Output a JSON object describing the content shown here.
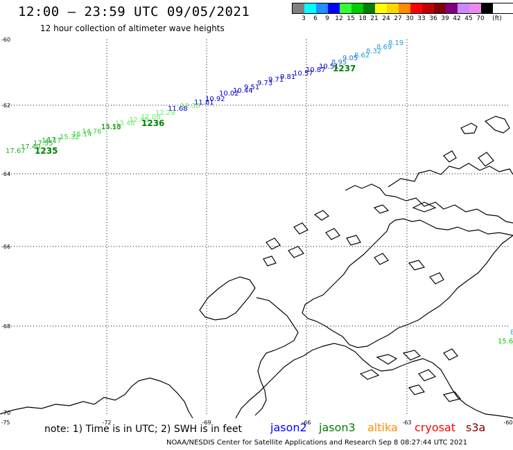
{
  "header": {
    "title": "12:00 – 23:59 UTC 09/05/2021",
    "subtitle": "12 hour collection of altimeter wave heights"
  },
  "legend": {
    "unit": "(ft)",
    "bins": [
      {
        "label": "3",
        "color": "#808080"
      },
      {
        "label": "6",
        "color": "#00ffff"
      },
      {
        "label": "9",
        "color": "#1e90ff"
      },
      {
        "label": "12",
        "color": "#0000ff"
      },
      {
        "label": "15",
        "color": "#33ff33"
      },
      {
        "label": "18",
        "color": "#00cc00"
      },
      {
        "label": "21",
        "color": "#008000"
      },
      {
        "label": "24",
        "color": "#ffff00"
      },
      {
        "label": "27",
        "color": "#ffd700"
      },
      {
        "label": "30",
        "color": "#ff8c00"
      },
      {
        "label": "33",
        "color": "#ff0000"
      },
      {
        "label": "36",
        "color": "#c00000"
      },
      {
        "label": "39",
        "color": "#800000"
      },
      {
        "label": "42",
        "color": "#800080"
      },
      {
        "label": "45",
        "color": "#cc88ff"
      },
      {
        "label": "70",
        "color": "#ee88ee"
      },
      {
        "label": "",
        "color": "#000000"
      }
    ]
  },
  "axes": {
    "lat_labels": [
      "-60",
      "-62",
      "-64",
      "-66",
      "-68",
      "-70"
    ],
    "lon_labels": [
      "-75",
      "-72",
      "-69",
      "-66",
      "-63",
      "-60"
    ]
  },
  "observations": [
    {
      "value": "8.19",
      "color": "#1ea0dc"
    },
    {
      "value": "8.69",
      "color": "#1ea0dc"
    },
    {
      "value": "8.32",
      "color": "#1ea0dc"
    },
    {
      "value": "8.62",
      "color": "#1ea0dc"
    },
    {
      "value": "9.05",
      "color": "#1e6ee6"
    },
    {
      "value": "8.95",
      "color": "#1e6ee6"
    },
    {
      "value": "10.51",
      "color": "#0000c8"
    },
    {
      "value": "10.87",
      "color": "#0000c8"
    },
    {
      "value": "10.57",
      "color": "#0000c8"
    },
    {
      "value": "9.81",
      "color": "#0000c8"
    },
    {
      "value": "9.71",
      "color": "#0000c8"
    },
    {
      "value": "9.73",
      "color": "#0000c8"
    },
    {
      "value": "9.51",
      "color": "#0000c8"
    },
    {
      "value": "10.44",
      "color": "#0000c8"
    },
    {
      "value": "10.02",
      "color": "#0000c8"
    },
    {
      "value": "10.92",
      "color": "#0000c8"
    },
    {
      "value": "11.81",
      "color": "#0000c8"
    },
    {
      "value": "11.68",
      "color": "#0000c8"
    },
    {
      "value": "12.36",
      "color": "#66ee66"
    },
    {
      "value": "12.29",
      "color": "#66ee66"
    },
    {
      "value": "12.08",
      "color": "#66ee66"
    },
    {
      "value": "12.45",
      "color": "#66ee66"
    },
    {
      "value": "13.48",
      "color": "#66ee66"
    },
    {
      "value": "14.53",
      "color": "#33cc33"
    },
    {
      "value": "15.18",
      "color": "#228b22"
    },
    {
      "value": "14.76",
      "color": "#33cc33"
    },
    {
      "value": "15.32",
      "color": "#33cc33"
    },
    {
      "value": "15.14",
      "color": "#33cc33"
    },
    {
      "value": "16.17",
      "color": "#22b022"
    },
    {
      "value": "17",
      "color": "#22b022"
    },
    {
      "value": "17.55",
      "color": "#22b022"
    },
    {
      "value": "17.40",
      "color": "#22b022"
    },
    {
      "value": "17.67",
      "color": "#22b022"
    },
    {
      "value": "8",
      "color": "#1ea0dc"
    },
    {
      "value": "15.6",
      "color": "#00cc00"
    }
  ],
  "passes": [
    {
      "label": "1237",
      "color": "#008000"
    },
    {
      "label": "1236",
      "color": "#008000"
    },
    {
      "label": "1235",
      "color": "#008000"
    }
  ],
  "footer": {
    "note": "note: 1) Time is in UTC; 2) SWH is in feet",
    "satellites": [
      {
        "name": "jason2",
        "color": "#0000ff"
      },
      {
        "name": "jason3",
        "color": "#008000"
      },
      {
        "name": "altika",
        "color": "#ff8c00"
      },
      {
        "name": "cryosat",
        "color": "#ff0000"
      },
      {
        "name": "s3a",
        "color": "#800000"
      }
    ],
    "credit": "NOAA/NESDIS Center for Satellite Applications and Research    Sep  8 08:27:44 UTC 2021"
  }
}
